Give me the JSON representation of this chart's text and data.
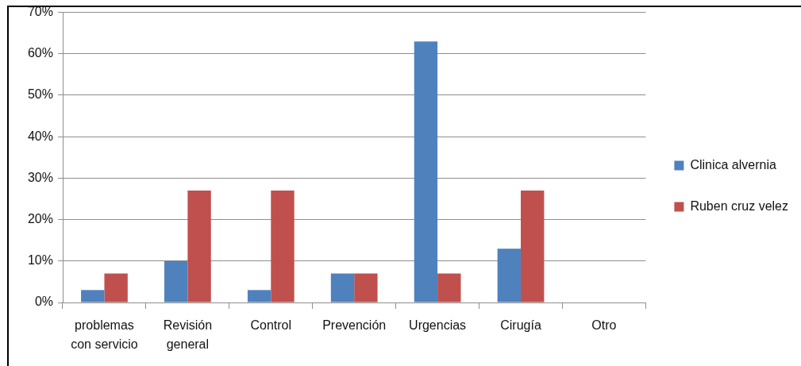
{
  "chart_data": {
    "type": "bar",
    "categories": [
      "problemas con servicio",
      "Revisión general",
      "Control",
      "Prevención",
      "Urgencias",
      "Cirugía",
      "Otro"
    ],
    "series": [
      {
        "name": "Clinica alvernia",
        "color": "#4f81bd",
        "values": [
          3,
          10,
          3,
          7,
          63,
          13,
          0
        ]
      },
      {
        "name": "Ruben cruz velez",
        "color": "#c0504d",
        "values": [
          7,
          27,
          27,
          7,
          7,
          27,
          0
        ]
      }
    ],
    "ylim": [
      0,
      70
    ],
    "yticks": [
      {
        "value": 0,
        "label": "0%"
      },
      {
        "value": 10,
        "label": "10%"
      },
      {
        "value": 20,
        "label": "20%"
      },
      {
        "value": 30,
        "label": "30%"
      },
      {
        "value": 40,
        "label": "40%"
      },
      {
        "value": 50,
        "label": "50%"
      },
      {
        "value": 60,
        "label": "60%"
      },
      {
        "value": 70,
        "label": "70%"
      }
    ],
    "grid": "y",
    "legend": "right"
  }
}
